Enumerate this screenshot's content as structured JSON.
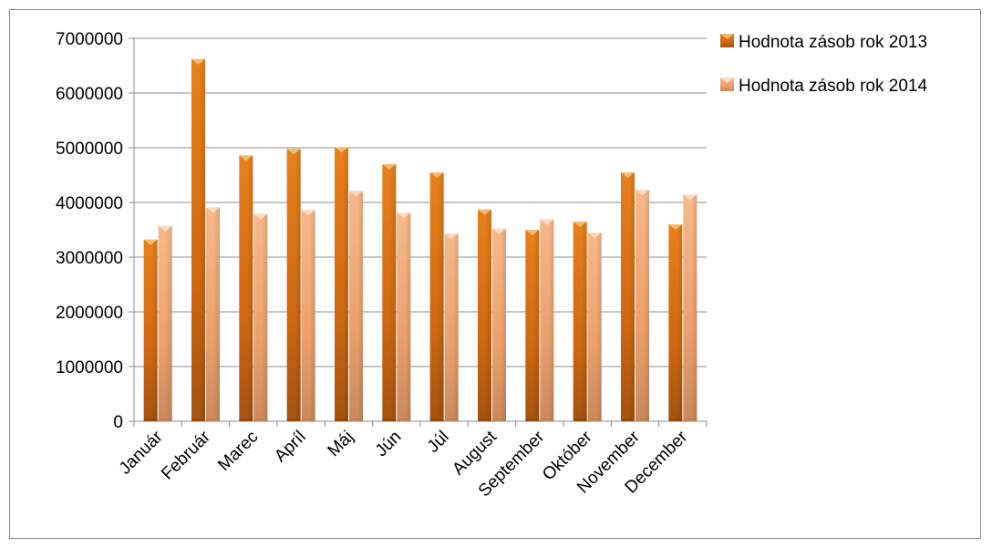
{
  "chart_data": {
    "type": "bar",
    "categories": [
      "Január",
      "Február",
      "Marec",
      "Apríl",
      "Máj",
      "Jún",
      "Júl",
      "August",
      "September",
      "Október",
      "November",
      "December"
    ],
    "series": [
      {
        "name": "Hodnota zásob rok 2013",
        "color": "#d9731a",
        "values": [
          3320000,
          6620000,
          4860000,
          4980000,
          5010000,
          4700000,
          4550000,
          3870000,
          3500000,
          3650000,
          4550000,
          3600000
        ]
      },
      {
        "name": "Hodnota zásob rok 2014",
        "color": "#f0a878",
        "values": [
          3570000,
          3910000,
          3790000,
          3860000,
          4210000,
          3810000,
          3430000,
          3520000,
          3690000,
          3450000,
          4230000,
          4140000
        ]
      }
    ],
    "ylim": [
      0,
      7000000
    ],
    "yticks": [
      0,
      1000000,
      2000000,
      3000000,
      4000000,
      5000000,
      6000000,
      7000000
    ],
    "grid": true,
    "legend": "right"
  }
}
